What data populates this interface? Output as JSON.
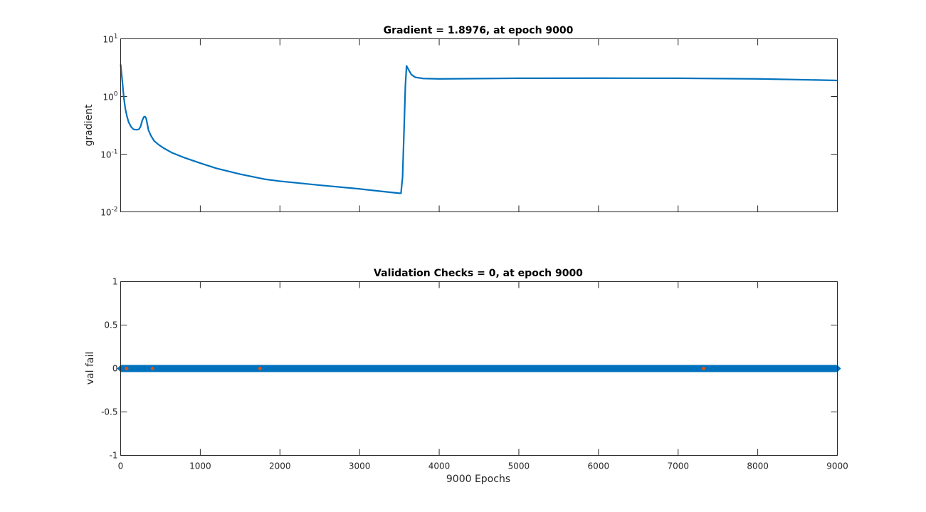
{
  "chart_data": [
    {
      "type": "line",
      "title": "Gradient = 1.8976, at epoch 9000",
      "ylabel": "gradient",
      "xlabel": "",
      "yscale": "log",
      "xlim": [
        0,
        9000
      ],
      "ylim": [
        0.01,
        10
      ],
      "yticks": [
        {
          "value": 0.01,
          "base": "10",
          "exp": "-2"
        },
        {
          "value": 0.1,
          "base": "10",
          "exp": "-1"
        },
        {
          "value": 1,
          "base": "10",
          "exp": "0"
        },
        {
          "value": 10,
          "base": "10",
          "exp": "1"
        }
      ],
      "xticks": [
        0,
        1000,
        2000,
        3000,
        4000,
        5000,
        6000,
        7000,
        8000,
        9000
      ],
      "show_xtick_labels": false,
      "grid": false,
      "color": "#0072BD",
      "x": [
        0,
        20,
        40,
        60,
        80,
        100,
        130,
        160,
        200,
        230,
        250,
        270,
        290,
        305,
        320,
        335,
        350,
        380,
        420,
        480,
        550,
        650,
        800,
        1000,
        1200,
        1500,
        1800,
        2000,
        2500,
        3000,
        3300,
        3500,
        3520,
        3540,
        3560,
        3575,
        3590,
        3610,
        3650,
        3700,
        3800,
        4000,
        5000,
        6000,
        7000,
        8000,
        8500,
        9000
      ],
      "y": [
        3.6,
        1.9,
        0.95,
        0.6,
        0.45,
        0.36,
        0.3,
        0.27,
        0.265,
        0.27,
        0.3,
        0.38,
        0.44,
        0.45,
        0.42,
        0.33,
        0.26,
        0.21,
        0.17,
        0.145,
        0.125,
        0.105,
        0.087,
        0.07,
        0.057,
        0.045,
        0.037,
        0.034,
        0.029,
        0.025,
        0.0225,
        0.021,
        0.021,
        0.04,
        0.3,
        1.5,
        3.4,
        3.0,
        2.4,
        2.15,
        2.05,
        2.02,
        2.07,
        2.08,
        2.07,
        2.02,
        1.96,
        1.8976
      ]
    },
    {
      "type": "line",
      "title": "Validation Checks = 0, at epoch 9000",
      "ylabel": "val fail",
      "xlabel": "9000 Epochs",
      "xlim": [
        0,
        9000
      ],
      "ylim": [
        -1,
        1
      ],
      "yticks": [
        -1,
        -0.5,
        0,
        0.5,
        1
      ],
      "ytick_labels": [
        "-1",
        "-0.5",
        "0",
        "0.5",
        "1"
      ],
      "xticks": [
        0,
        1000,
        2000,
        3000,
        4000,
        5000,
        6000,
        7000,
        8000,
        9000
      ],
      "xtick_labels": [
        "0",
        "1000",
        "2000",
        "3000",
        "4000",
        "5000",
        "6000",
        "7000",
        "8000",
        "9000"
      ],
      "grid": false,
      "color": "#0072BD",
      "series": [
        {
          "x": [
            0,
            9000
          ],
          "y": [
            0,
            0
          ]
        }
      ],
      "markers": {
        "color": "#D95319",
        "x": [
          75,
          400,
          1750,
          7320
        ],
        "y": [
          0,
          0,
          0,
          0
        ]
      }
    }
  ]
}
